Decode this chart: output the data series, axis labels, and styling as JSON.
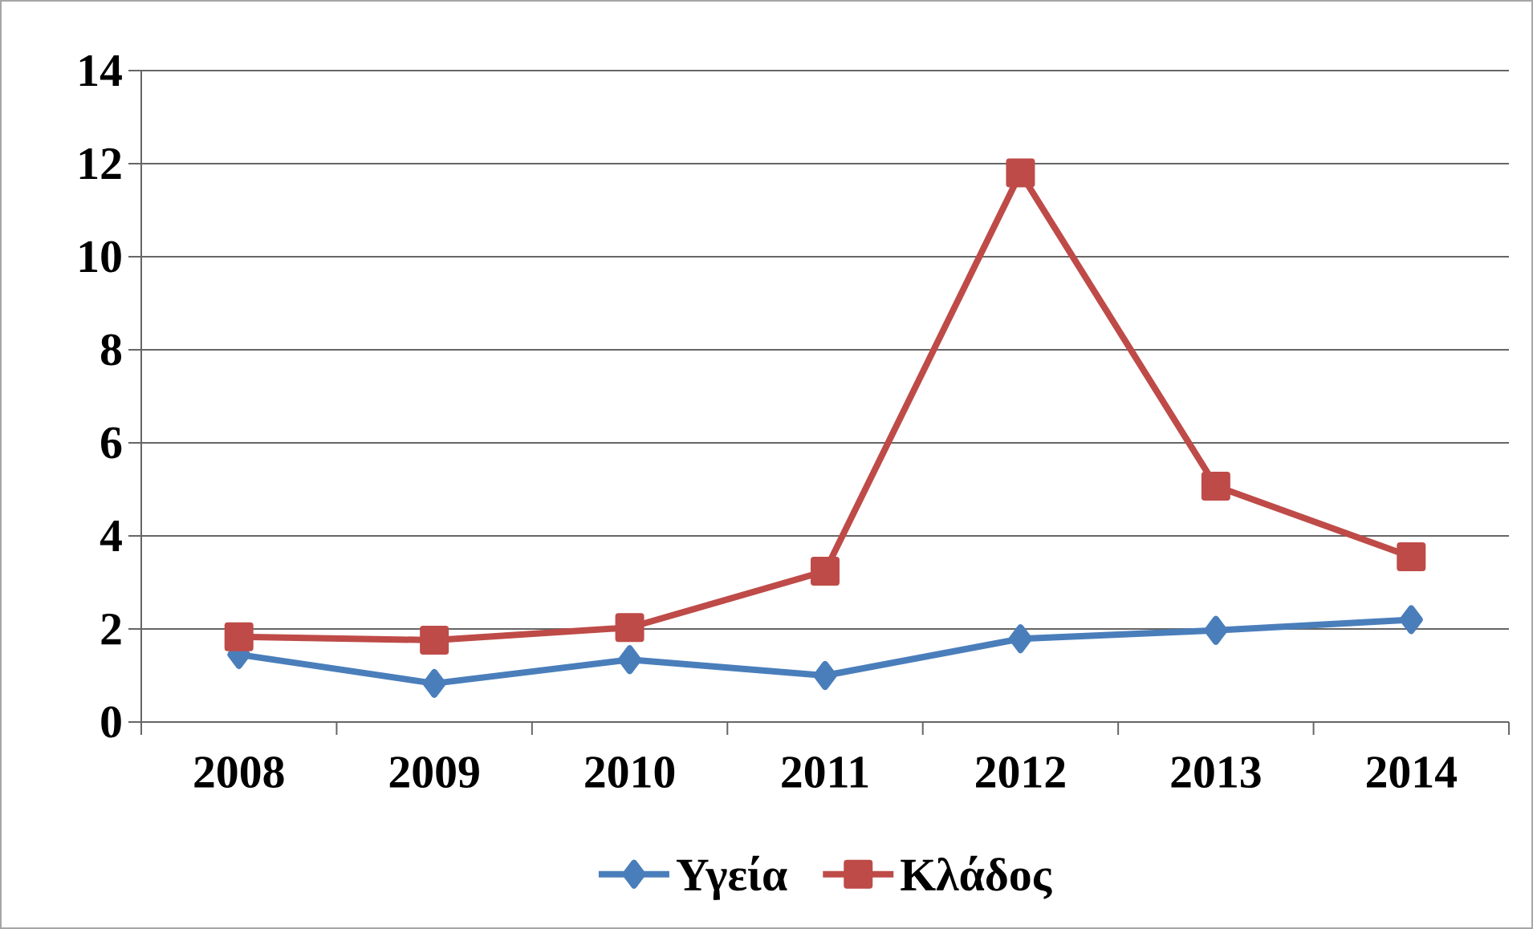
{
  "chart_data": {
    "type": "line",
    "categories": [
      "2008",
      "2009",
      "2010",
      "2011",
      "2012",
      "2013",
      "2014"
    ],
    "series": [
      {
        "name": "Υγεία",
        "color": "#4a7ebb",
        "marker": "diamond",
        "values": [
          1.45,
          0.83,
          1.34,
          1.0,
          1.79,
          1.97,
          2.2
        ]
      },
      {
        "name": "Κλάδος",
        "color": "#be4b48",
        "marker": "square",
        "values": [
          1.83,
          1.76,
          2.03,
          3.24,
          11.8,
          5.07,
          3.55
        ]
      }
    ],
    "ylim": [
      0,
      14
    ],
    "yticks": [
      0,
      2,
      4,
      6,
      8,
      10,
      12,
      14
    ],
    "grid": "y",
    "legend": "bottom",
    "line_style": "solid"
  }
}
